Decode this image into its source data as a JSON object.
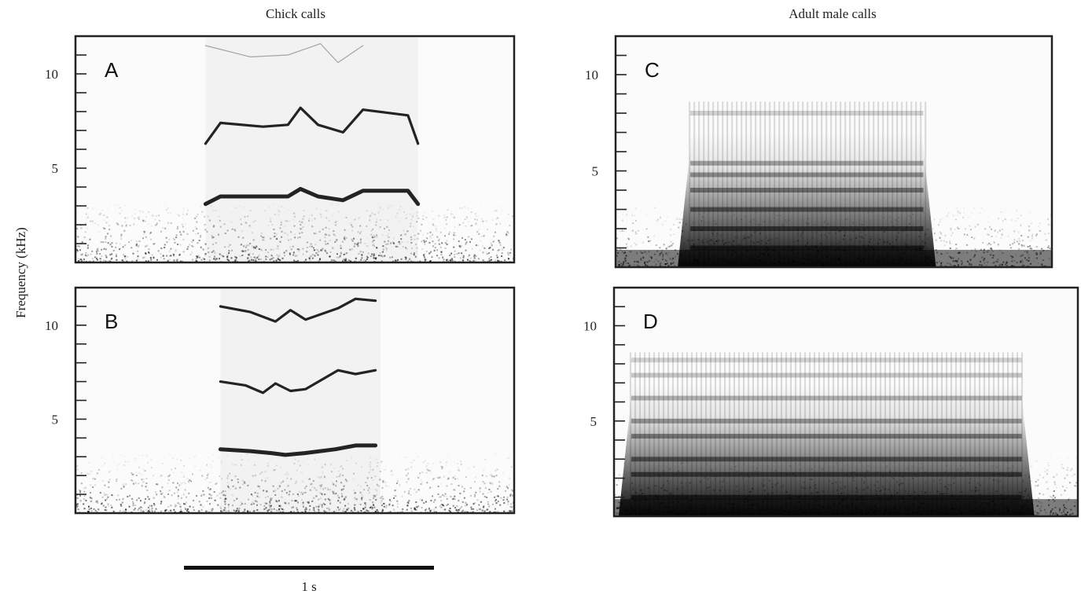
{
  "titles": {
    "left": "Chick calls",
    "right": "Adult male calls"
  },
  "ylabel": "Frequency (kHz)",
  "scale_bar_label": "1 s",
  "chart_data": [
    {
      "type": "heatmap",
      "panel": "A",
      "column": "Chick calls",
      "ylabel": "Frequency (kHz)",
      "yticks": [
        5,
        10
      ],
      "ylim": [
        0,
        12
      ],
      "call_extent_s": [
        0.52,
        1.37
      ],
      "harmonics": [
        {
          "t": [
            0.52,
            0.58,
            0.75,
            0.85,
            0.9,
            0.97,
            1.07,
            1.15,
            1.33,
            1.37
          ],
          "f": [
            3.1,
            3.5,
            3.5,
            3.5,
            3.9,
            3.5,
            3.3,
            3.8,
            3.8,
            3.1
          ]
        },
        {
          "t": [
            0.52,
            0.58,
            0.75,
            0.85,
            0.9,
            0.97,
            1.07,
            1.15,
            1.33,
            1.37
          ],
          "f": [
            6.3,
            7.4,
            7.2,
            7.3,
            8.2,
            7.3,
            6.9,
            8.1,
            7.8,
            6.3
          ]
        },
        {
          "t": [
            0.52,
            0.7,
            0.85,
            0.98,
            1.05,
            1.15
          ],
          "f": [
            11.5,
            10.9,
            11.0,
            11.6,
            10.6,
            11.5
          ],
          "faint": true
        }
      ]
    },
    {
      "type": "heatmap",
      "panel": "B",
      "column": "Chick calls",
      "ylabel": "Frequency (kHz)",
      "yticks": [
        5,
        10
      ],
      "ylim": [
        0,
        12
      ],
      "call_extent_s": [
        0.58,
        1.22
      ],
      "harmonics": [
        {
          "t": [
            0.58,
            0.7,
            0.78,
            0.84,
            0.92,
            1.04,
            1.12,
            1.2
          ],
          "f": [
            3.4,
            3.3,
            3.2,
            3.1,
            3.2,
            3.4,
            3.6,
            3.6
          ]
        },
        {
          "t": [
            0.58,
            0.68,
            0.75,
            0.8,
            0.86,
            0.92,
            1.05,
            1.12,
            1.2
          ],
          "f": [
            7.0,
            6.8,
            6.4,
            6.9,
            6.5,
            6.6,
            7.6,
            7.4,
            7.6
          ]
        },
        {
          "t": [
            0.58,
            0.7,
            0.8,
            0.86,
            0.92,
            1.05,
            1.12,
            1.2
          ],
          "f": [
            11.0,
            10.7,
            10.2,
            10.8,
            10.3,
            10.9,
            11.4,
            11.3
          ]
        }
      ]
    },
    {
      "type": "heatmap",
      "panel": "C",
      "column": "Adult male calls",
      "ylabel": "Frequency (kHz)",
      "yticks": [
        5,
        10
      ],
      "ylim": [
        0,
        12
      ],
      "call_extent_s": [
        0.28,
        1.25
      ],
      "energy_bands_khz": [
        1.0,
        2.0,
        3.0,
        4.0,
        4.8,
        5.4,
        8.0
      ]
    },
    {
      "type": "heatmap",
      "panel": "D",
      "column": "Adult male calls",
      "ylabel": "Frequency (kHz)",
      "yticks": [
        5,
        10
      ],
      "ylim": [
        0,
        12
      ],
      "call_extent_s": [
        0.05,
        1.65
      ],
      "energy_bands_khz": [
        1.0,
        2.2,
        3.0,
        4.2,
        5.0,
        6.2,
        7.4,
        8.2
      ]
    }
  ]
}
